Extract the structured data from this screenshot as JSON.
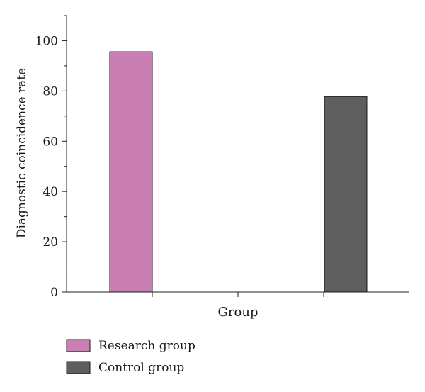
{
  "chart_data": {
    "type": "bar",
    "xlabel": "Group",
    "ylabel": "Diagnostic coincidence rate",
    "ylim": [
      0,
      110
    ],
    "yticks": [
      0,
      20,
      40,
      60,
      80,
      100
    ],
    "y_minor_step": 10,
    "grid": false,
    "legend_position": "bottom-left",
    "series": [
      {
        "name": "Research group",
        "value": 95.6,
        "color": "#c97fb3"
      },
      {
        "name": "Control group",
        "value": 77.8,
        "color": "#5e5e5e"
      }
    ]
  }
}
